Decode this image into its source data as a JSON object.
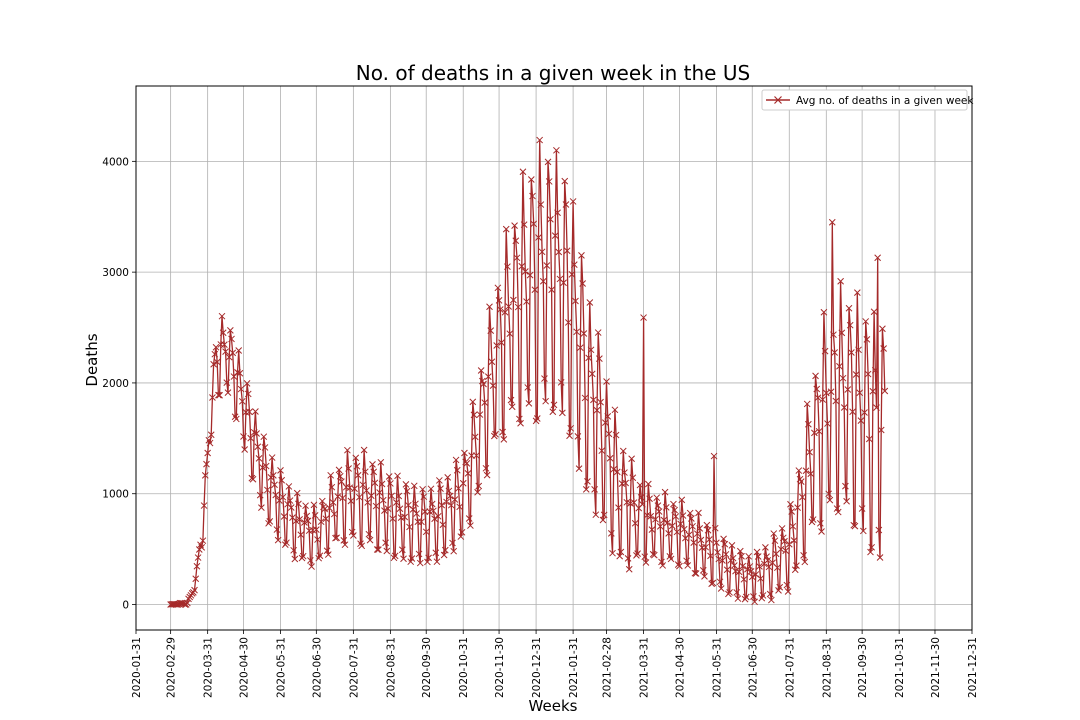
{
  "chart_data": {
    "type": "line",
    "title": "No. of deaths in a given week in the US",
    "xlabel": "Weeks",
    "ylabel": "Deaths",
    "x_tick_labels": [
      "2020-01-31",
      "2020-02-29",
      "2020-03-31",
      "2020-04-30",
      "2020-05-31",
      "2020-06-30",
      "2020-07-31",
      "2020-08-31",
      "2020-09-30",
      "2020-10-31",
      "2020-11-30",
      "2020-12-31",
      "2021-01-31",
      "2021-02-28",
      "2021-03-31",
      "2021-04-30",
      "2021-05-31",
      "2021-06-30",
      "2021-07-31",
      "2021-08-31",
      "2021-09-30",
      "2021-10-31",
      "2021-11-30",
      "2021-12-31"
    ],
    "x_range": [
      "2020-01-31",
      "2021-12-31"
    ],
    "y_ticks": [
      0,
      1000,
      2000,
      3000,
      4000
    ],
    "ylim": [
      -230,
      4680
    ],
    "grid": true,
    "legend_position": "upper-right",
    "marker": "x",
    "line_color": "#a52a2a",
    "series": [
      {
        "name": "Avg no. of deaths in a given week",
        "anchors": [
          [
            "2020-02-29",
            0
          ],
          [
            "2020-03-14",
            10
          ],
          [
            "2020-03-20",
            150
          ],
          [
            "2020-03-27",
            700
          ],
          [
            "2020-04-01",
            1500
          ],
          [
            "2020-04-07",
            2200
          ],
          [
            "2020-04-15",
            2300
          ],
          [
            "2020-04-22",
            2100
          ],
          [
            "2020-04-30",
            1800
          ],
          [
            "2020-05-10",
            1400
          ],
          [
            "2020-05-20",
            1100
          ],
          [
            "2020-05-31",
            900
          ],
          [
            "2020-06-15",
            700
          ],
          [
            "2020-06-30",
            620
          ],
          [
            "2020-07-10",
            800
          ],
          [
            "2020-07-20",
            950
          ],
          [
            "2020-07-31",
            1000
          ],
          [
            "2020-08-15",
            950
          ],
          [
            "2020-08-31",
            830
          ],
          [
            "2020-09-15",
            760
          ],
          [
            "2020-09-30",
            720
          ],
          [
            "2020-10-15",
            800
          ],
          [
            "2020-10-31",
            1000
          ],
          [
            "2020-11-10",
            1400
          ],
          [
            "2020-11-20",
            1900
          ],
          [
            "2020-11-30",
            2300
          ],
          [
            "2020-12-10",
            2600
          ],
          [
            "2020-12-20",
            2800
          ],
          [
            "2020-12-31",
            2950
          ],
          [
            "2021-01-10",
            3000
          ],
          [
            "2021-01-20",
            2950
          ],
          [
            "2021-01-31",
            2600
          ],
          [
            "2021-02-10",
            2050
          ],
          [
            "2021-02-20",
            1700
          ],
          [
            "2021-02-28",
            1400
          ],
          [
            "2021-03-10",
            1000
          ],
          [
            "2021-03-20",
            850
          ],
          [
            "2021-03-31",
            760
          ],
          [
            "2021-04-15",
            700
          ],
          [
            "2021-04-30",
            660
          ],
          [
            "2021-05-15",
            560
          ],
          [
            "2021-05-31",
            430
          ],
          [
            "2021-06-15",
            300
          ],
          [
            "2021-06-30",
            240
          ],
          [
            "2021-07-15",
            330
          ],
          [
            "2021-07-31",
            500
          ],
          [
            "2021-08-10",
            900
          ],
          [
            "2021-08-20",
            1400
          ],
          [
            "2021-08-31",
            1750
          ],
          [
            "2021-09-10",
            1900
          ],
          [
            "2021-09-20",
            1850
          ],
          [
            "2021-09-30",
            1700
          ],
          [
            "2021-10-08",
            1600
          ],
          [
            "2021-10-19",
            1500
          ]
        ],
        "swing": [
          [
            "2020-02-29",
            0
          ],
          [
            "2020-03-20",
            20
          ],
          [
            "2020-03-31",
            150
          ],
          [
            "2020-04-10",
            300
          ],
          [
            "2020-05-10",
            330
          ],
          [
            "2020-06-30",
            230
          ],
          [
            "2020-07-31",
            380
          ],
          [
            "2020-09-30",
            300
          ],
          [
            "2020-10-31",
            350
          ],
          [
            "2020-11-30",
            700
          ],
          [
            "2020-12-31",
            1100
          ],
          [
            "2021-01-31",
            1000
          ],
          [
            "2021-02-28",
            650
          ],
          [
            "2021-03-31",
            300
          ],
          [
            "2021-04-30",
            260
          ],
          [
            "2021-05-31",
            230
          ],
          [
            "2021-06-30",
            180
          ],
          [
            "2021-07-31",
            300
          ],
          [
            "2021-08-31",
            850
          ],
          [
            "2021-09-30",
            950
          ],
          [
            "2021-10-19",
            1000
          ]
        ],
        "spikes": [
          [
            "2021-03-31",
            2590
          ],
          [
            "2021-05-29",
            1340
          ],
          [
            "2021-09-05",
            3450
          ],
          [
            "2021-10-13",
            3130
          ]
        ]
      }
    ]
  }
}
